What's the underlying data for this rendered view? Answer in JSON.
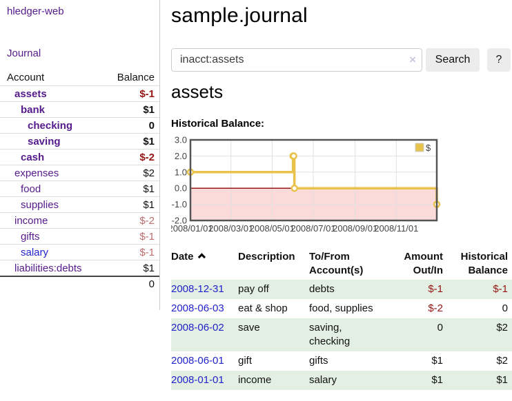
{
  "app": {
    "title": "hledger-web",
    "nav_journal": "Journal"
  },
  "sidebar": {
    "header": {
      "account": "Account",
      "balance": "Balance"
    },
    "accounts": [
      {
        "name": "assets",
        "balance": "$-1"
      },
      {
        "name": "bank",
        "balance": "$1"
      },
      {
        "name": "checking",
        "balance": "0"
      },
      {
        "name": "saving",
        "balance": "$1"
      },
      {
        "name": "cash",
        "balance": "$-2"
      },
      {
        "name": "expenses",
        "balance": "$2"
      },
      {
        "name": "food",
        "balance": "$1"
      },
      {
        "name": "supplies",
        "balance": "$1"
      },
      {
        "name": "income",
        "balance": "$-2"
      },
      {
        "name": "gifts",
        "balance": "$-1"
      },
      {
        "name": "salary",
        "balance": "$-1"
      },
      {
        "name": "liabilities:debts",
        "balance": "$1"
      }
    ],
    "total": "0"
  },
  "main": {
    "title": "sample.journal",
    "search": {
      "value": "inacct:assets",
      "clear_icon": "×",
      "button_label": "Search",
      "help_label": "?"
    },
    "heading": "assets",
    "chart_label": "Historical Balance:"
  },
  "chart_data": {
    "type": "line",
    "title": "Historical Balance:",
    "step": true,
    "series": [
      {
        "name": "$",
        "color": "#e8c24a",
        "points": [
          {
            "date": "2008-01-01",
            "value": 1
          },
          {
            "date": "2008-06-01",
            "value": 2
          },
          {
            "date": "2008-06-02",
            "value": 2
          },
          {
            "date": "2008-06-03",
            "value": 0
          },
          {
            "date": "2008-12-31",
            "value": -1
          }
        ]
      }
    ],
    "x_range": [
      "2008-01-01",
      "2008-12-31"
    ],
    "x_ticks": [
      {
        "date": "2008-01-01",
        "label": "2008/01/01"
      },
      {
        "date": "2008-03-01",
        "label": "2008/03/01"
      },
      {
        "date": "2008-05-01",
        "label": "2008/05/01"
      },
      {
        "date": "2008-07-01",
        "label": "2008/07/01"
      },
      {
        "date": "2008-09-01",
        "label": "2008/09/01"
      },
      {
        "date": "2008-11-01",
        "label": "2008/11/01"
      }
    ],
    "y_ticks": [
      3.0,
      2.0,
      1.0,
      0.0,
      -1.0,
      -2.0
    ],
    "ylim": [
      -2,
      3
    ],
    "legend": {
      "label": "$",
      "position": "top-right"
    },
    "colors": {
      "line": "#e8c24a",
      "marker_fill": "#ffffff",
      "negative_region": "#fbdada",
      "zero_line": "#8b0000",
      "grid": "#e0e0e0",
      "border": "#545454",
      "tick_text": "#444444"
    }
  },
  "register": {
    "headers": {
      "date": "Date",
      "description": "Description",
      "tofrom_line1": "To/From",
      "tofrom_line2": "Account(s)",
      "amount_line1": "Amount",
      "amount_line2": "Out/In",
      "balance_line1": "Historical",
      "balance_line2": "Balance"
    },
    "rows": [
      {
        "date": "2008-12-31",
        "description": "pay off",
        "accounts": "debts",
        "amount": "$-1",
        "balance": "$-1"
      },
      {
        "date": "2008-06-03",
        "description": "eat & shop",
        "accounts": "food, supplies",
        "amount": "$-2",
        "balance": "0"
      },
      {
        "date": "2008-06-02",
        "description": "save",
        "accounts": "saving, checking",
        "amount": "0",
        "balance": "$2"
      },
      {
        "date": "2008-06-01",
        "description": "gift",
        "accounts": "gifts",
        "amount": "$1",
        "balance": "$2"
      },
      {
        "date": "2008-01-01",
        "description": "income",
        "accounts": "salary",
        "amount": "$1",
        "balance": "$1"
      }
    ]
  }
}
